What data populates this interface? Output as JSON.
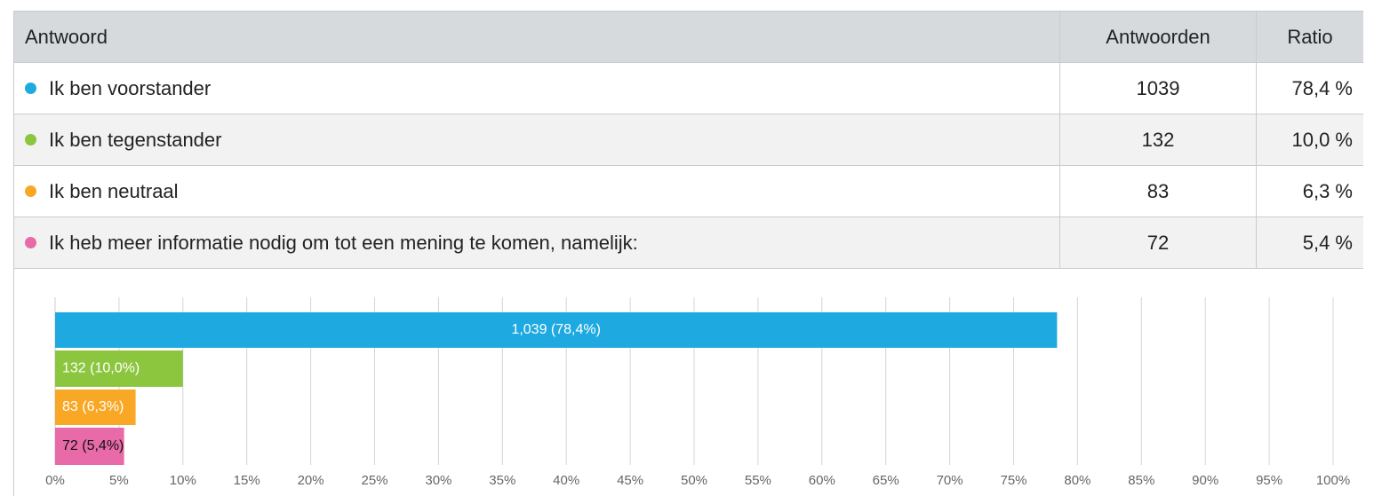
{
  "table": {
    "header": [
      "Antwoord",
      "Antwoorden",
      "Ratio"
    ],
    "rows": [
      [
        "Ik ben voorstander",
        1039,
        "78,4 %"
      ],
      [
        "Ik ben tegenstander",
        132,
        "10,0 %"
      ],
      [
        "Ik ben neutraal",
        83,
        "6,3 %"
      ],
      [
        "Ik heb meer informatie nodig om tot een mening te komen, namelijk:",
        72,
        "5,4 %"
      ]
    ]
  },
  "chart_data": {
    "type": "bar",
    "orientation": "horizontal",
    "values": [
      78.4,
      10.0,
      6.3,
      5.4
    ],
    "value_labels": [
      "1,039 (78,4%)",
      "132 (10,0%)",
      "83 (6,3%)",
      "72 (5,4%)"
    ],
    "colors": [
      "#1eaae1",
      "#8cc63f",
      "#f9a825",
      "#e86aa8"
    ],
    "xlim": [
      0,
      100
    ],
    "xticks": [
      {
        "value": 0,
        "label": "0%"
      },
      {
        "value": 5,
        "label": "5%"
      },
      {
        "value": 10,
        "label": "10%"
      },
      {
        "value": 15,
        "label": "15%"
      },
      {
        "value": 20,
        "label": "20%"
      },
      {
        "value": 25,
        "label": "25%"
      },
      {
        "value": 30,
        "label": "30%"
      },
      {
        "value": 35,
        "label": "35%"
      },
      {
        "value": 40,
        "label": "40%"
      },
      {
        "value": 45,
        "label": "45%"
      },
      {
        "value": 50,
        "label": "50%"
      },
      {
        "value": 55,
        "label": "55%"
      },
      {
        "value": 60,
        "label": "60%"
      },
      {
        "value": 65,
        "label": "65%"
      },
      {
        "value": 70,
        "label": "70%"
      },
      {
        "value": 75,
        "label": "75%"
      },
      {
        "value": 80,
        "label": "80%"
      },
      {
        "value": 85,
        "label": "85%"
      },
      {
        "value": 90,
        "label": "90%"
      },
      {
        "value": 95,
        "label": "95%"
      },
      {
        "value": 100,
        "label": "100%"
      }
    ],
    "grid": true
  }
}
